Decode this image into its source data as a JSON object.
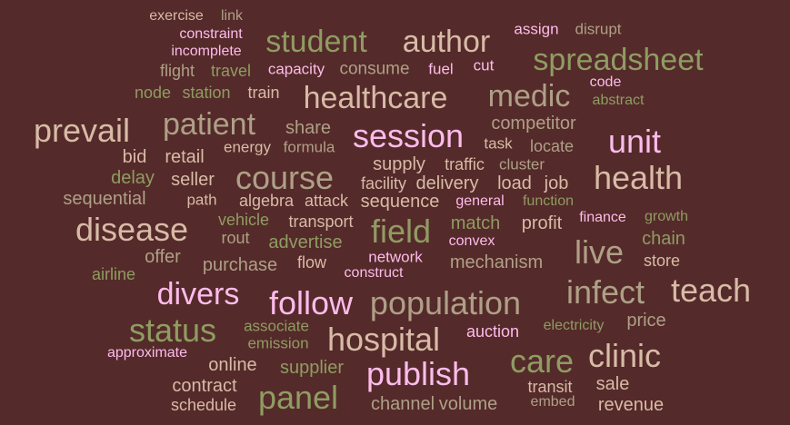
{
  "colors": {
    "background": "#552a2a",
    "pink": "#fcbcec",
    "tan": "#d7bba7",
    "olive": "#8f9c62",
    "taupe": "#aea087"
  },
  "words": [
    {
      "text": "exercise",
      "color": "tan"
    },
    {
      "text": "link",
      "color": "taupe"
    },
    {
      "text": "constraint",
      "color": "pink"
    },
    {
      "text": "incomplete",
      "color": "pink"
    },
    {
      "text": "flight",
      "color": "taupe"
    },
    {
      "text": "travel",
      "color": "olive"
    },
    {
      "text": "node",
      "color": "olive"
    },
    {
      "text": "station",
      "color": "olive"
    },
    {
      "text": "train",
      "color": "tan"
    },
    {
      "text": "student",
      "color": "olive"
    },
    {
      "text": "author",
      "color": "tan"
    },
    {
      "text": "assign",
      "color": "pink"
    },
    {
      "text": "disrupt",
      "color": "taupe"
    },
    {
      "text": "capacity",
      "color": "pink"
    },
    {
      "text": "consume",
      "color": "taupe"
    },
    {
      "text": "fuel",
      "color": "pink"
    },
    {
      "text": "cut",
      "color": "pink"
    },
    {
      "text": "spreadsheet",
      "color": "olive"
    },
    {
      "text": "code",
      "color": "pink"
    },
    {
      "text": "abstract",
      "color": "olive"
    },
    {
      "text": "healthcare",
      "color": "tan"
    },
    {
      "text": "medic",
      "color": "taupe"
    },
    {
      "text": "prevail",
      "color": "tan"
    },
    {
      "text": "patient",
      "color": "taupe"
    },
    {
      "text": "share",
      "color": "taupe"
    },
    {
      "text": "session",
      "color": "pink"
    },
    {
      "text": "competitor",
      "color": "taupe"
    },
    {
      "text": "unit",
      "color": "pink"
    },
    {
      "text": "energy",
      "color": "tan"
    },
    {
      "text": "formula",
      "color": "taupe"
    },
    {
      "text": "task",
      "color": "tan"
    },
    {
      "text": "locate",
      "color": "taupe"
    },
    {
      "text": "bid",
      "color": "tan"
    },
    {
      "text": "retail",
      "color": "tan"
    },
    {
      "text": "supply",
      "color": "tan"
    },
    {
      "text": "traffic",
      "color": "tan"
    },
    {
      "text": "cluster",
      "color": "taupe"
    },
    {
      "text": "health",
      "color": "tan"
    },
    {
      "text": "delay",
      "color": "olive"
    },
    {
      "text": "seller",
      "color": "tan"
    },
    {
      "text": "course",
      "color": "taupe"
    },
    {
      "text": "facility",
      "color": "tan"
    },
    {
      "text": "delivery",
      "color": "tan"
    },
    {
      "text": "load",
      "color": "tan"
    },
    {
      "text": "job",
      "color": "tan"
    },
    {
      "text": "sequential",
      "color": "taupe"
    },
    {
      "text": "path",
      "color": "tan"
    },
    {
      "text": "algebra",
      "color": "tan"
    },
    {
      "text": "attack",
      "color": "tan"
    },
    {
      "text": "sequence",
      "color": "tan"
    },
    {
      "text": "general",
      "color": "pink"
    },
    {
      "text": "function",
      "color": "olive"
    },
    {
      "text": "disease",
      "color": "tan"
    },
    {
      "text": "vehicle",
      "color": "olive"
    },
    {
      "text": "transport",
      "color": "tan"
    },
    {
      "text": "field",
      "color": "olive"
    },
    {
      "text": "match",
      "color": "olive"
    },
    {
      "text": "profit",
      "color": "tan"
    },
    {
      "text": "finance",
      "color": "pink"
    },
    {
      "text": "growth",
      "color": "olive"
    },
    {
      "text": "rout",
      "color": "taupe"
    },
    {
      "text": "advertise",
      "color": "olive"
    },
    {
      "text": "convex",
      "color": "pink"
    },
    {
      "text": "chain",
      "color": "olive"
    },
    {
      "text": "offer",
      "color": "taupe"
    },
    {
      "text": "live",
      "color": "taupe"
    },
    {
      "text": "network",
      "color": "pink"
    },
    {
      "text": "purchase",
      "color": "taupe"
    },
    {
      "text": "flow",
      "color": "tan"
    },
    {
      "text": "mechanism",
      "color": "taupe"
    },
    {
      "text": "store",
      "color": "tan"
    },
    {
      "text": "airline",
      "color": "olive"
    },
    {
      "text": "construct",
      "color": "pink"
    },
    {
      "text": "divers",
      "color": "pink"
    },
    {
      "text": "follow",
      "color": "pink"
    },
    {
      "text": "population",
      "color": "taupe"
    },
    {
      "text": "infect",
      "color": "taupe"
    },
    {
      "text": "teach",
      "color": "tan"
    },
    {
      "text": "status",
      "color": "olive"
    },
    {
      "text": "associate",
      "color": "olive"
    },
    {
      "text": "hospital",
      "color": "tan"
    },
    {
      "text": "auction",
      "color": "pink"
    },
    {
      "text": "electricity",
      "color": "olive"
    },
    {
      "text": "price",
      "color": "taupe"
    },
    {
      "text": "emission",
      "color": "olive"
    },
    {
      "text": "approximate",
      "color": "pink"
    },
    {
      "text": "care",
      "color": "olive"
    },
    {
      "text": "clinic",
      "color": "tan"
    },
    {
      "text": "online",
      "color": "tan"
    },
    {
      "text": "supplier",
      "color": "olive"
    },
    {
      "text": "publish",
      "color": "pink"
    },
    {
      "text": "contract",
      "color": "tan"
    },
    {
      "text": "transit",
      "color": "tan"
    },
    {
      "text": "sale",
      "color": "tan"
    },
    {
      "text": "panel",
      "color": "olive"
    },
    {
      "text": "schedule",
      "color": "tan"
    },
    {
      "text": "channel",
      "color": "taupe"
    },
    {
      "text": "volume",
      "color": "taupe"
    },
    {
      "text": "embed",
      "color": "taupe"
    },
    {
      "text": "revenue",
      "color": "tan"
    }
  ]
}
